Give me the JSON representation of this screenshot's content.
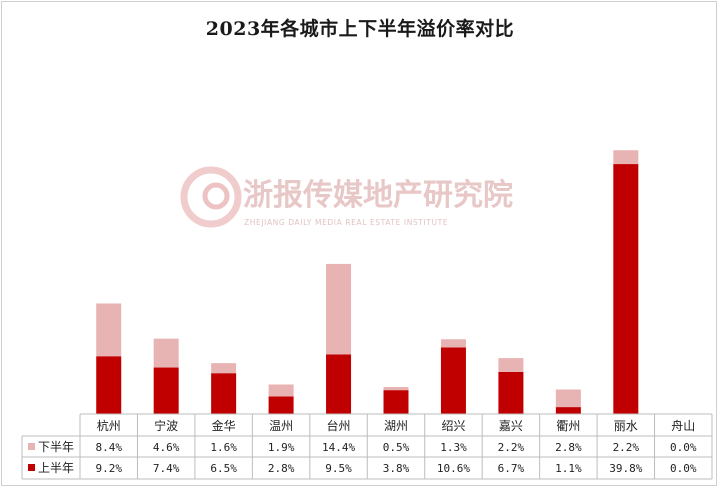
{
  "chart_data": {
    "type": "bar",
    "stacked": true,
    "title": "2023年各城市上下半年溢价率对比",
    "categories": [
      "杭州",
      "宁波",
      "金华",
      "温州",
      "台州",
      "湖州",
      "绍兴",
      "嘉兴",
      "衢州",
      "丽水",
      "舟山"
    ],
    "series": [
      {
        "name": "上半年",
        "color": "#c00000",
        "values": [
          9.2,
          7.4,
          6.5,
          2.8,
          9.5,
          3.8,
          10.6,
          6.7,
          1.1,
          39.8,
          0.0
        ],
        "labels": [
          "9.2%",
          "7.4%",
          "6.5%",
          "2.8%",
          "9.5%",
          "3.8%",
          "10.6%",
          "6.7%",
          "1.1%",
          "39.8%",
          "0.0%"
        ]
      },
      {
        "name": "下半年",
        "color": "#e8b3b3",
        "values": [
          8.4,
          4.6,
          1.6,
          1.9,
          14.4,
          0.5,
          1.3,
          2.2,
          2.8,
          2.2,
          0.0
        ],
        "labels": [
          "8.4%",
          "4.6%",
          "1.6%",
          "1.9%",
          "14.4%",
          "0.5%",
          "1.3%",
          "2.2%",
          "2.8%",
          "2.2%",
          "0.0%"
        ]
      }
    ],
    "legend_order": [
      1,
      0
    ],
    "data_table": true,
    "grid": false,
    "legend": "data-table-left"
  },
  "watermark": {
    "text": "浙报传媒地产研究院",
    "subtext": "ZHEJIANG DAILY MEDIA REAL ESTATE INSTITUTE"
  }
}
